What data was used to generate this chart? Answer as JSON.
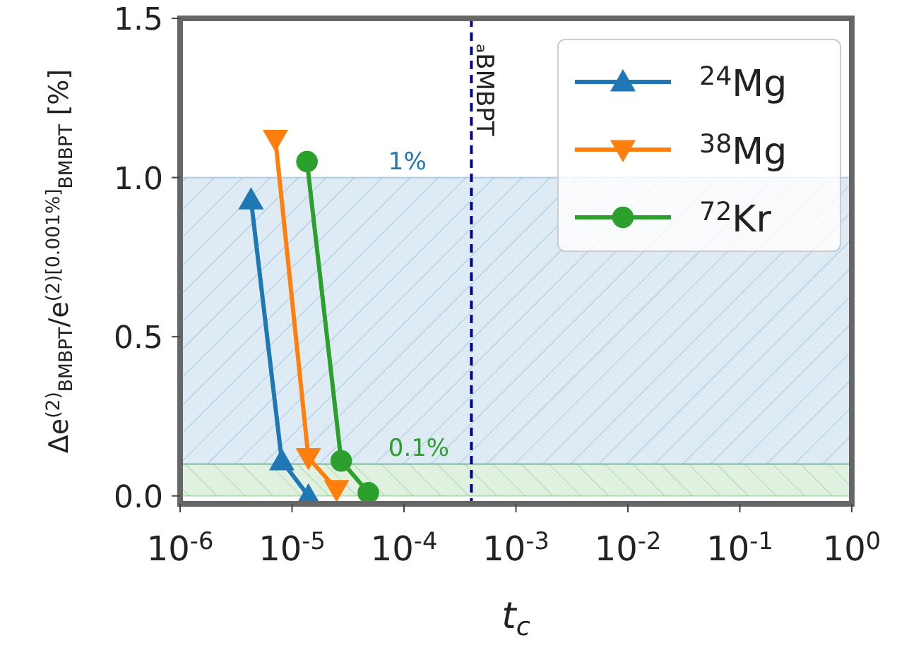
{
  "chart_data": {
    "type": "line",
    "xlabel": "t$_{c}$",
    "ylabel": "Δe$^{(2)}$$_{BMBPT}$/e$^{(2)[0.001%]}$$_{BMBPT}$ [%]",
    "log": "x",
    "xlim": [
      1e-06,
      1
    ],
    "ylim": [
      -0.025,
      1.5
    ],
    "xticks": [
      {
        "value": 1e-06,
        "label": "10$^{-6}$"
      },
      {
        "value": 1e-05,
        "label": "10$^{-5}$"
      },
      {
        "value": 0.0001,
        "label": "10$^{-4}$"
      },
      {
        "value": 0.001,
        "label": "10$^{-3}$"
      },
      {
        "value": 0.01,
        "label": "10$^{-2}$"
      },
      {
        "value": 0.1,
        "label": "10$^{-1}$"
      },
      {
        "value": 1,
        "label": "10$^{0}$"
      }
    ],
    "yticks": [
      {
        "value": 0,
        "label": "0.0"
      },
      {
        "value": 0.5,
        "label": "0.5"
      },
      {
        "value": 1,
        "label": "1.0"
      },
      {
        "value": 1.5,
        "label": "1.5"
      }
    ],
    "grid": false,
    "legend": "top right",
    "series": [
      {
        "name": "$^{24}$Mg",
        "color": "#1f77b4",
        "marker": "triangle",
        "x": [
          4.3e-06,
          8.1e-06,
          1.4e-05
        ],
        "values": [
          0.93,
          0.11,
          0.0
        ]
      },
      {
        "name": "$^{38}$Mg",
        "color": "#ff7f0e",
        "marker": "triangle-down",
        "x": [
          7.1e-06,
          1.4e-05,
          2.5e-05
        ],
        "values": [
          1.12,
          0.12,
          0.02
        ]
      },
      {
        "name": "$^{72}$Kr",
        "color": "#2ca02c",
        "marker": "circle",
        "x": [
          1.36e-05,
          2.75e-05,
          4.8e-05
        ],
        "values": [
          1.05,
          0.11,
          0.01
        ]
      }
    ],
    "bands": [
      {
        "axis": "y",
        "from": 0.1,
        "to": 1,
        "label": "1%",
        "color": "#1f77b4"
      },
      {
        "axis": "y",
        "from": 0,
        "to": 0.1,
        "label": "0.1%",
        "color": "#2ca02c"
      }
    ],
    "ref_lines": [
      {
        "axis": "x",
        "value": 0.0004,
        "label": "ₐBMBPT",
        "color": "#00008b",
        "line_style": "dashed"
      }
    ]
  }
}
